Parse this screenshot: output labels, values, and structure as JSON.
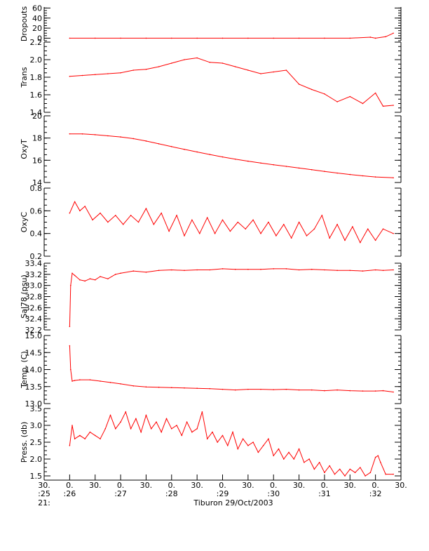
{
  "chart_data": {
    "type": "line",
    "caption": "Tiburon 29/Oct/2003",
    "line_color": "#ff0000",
    "axis_color": "#000000",
    "x_axis": {
      "ticks": [
        {
          "time": 25.5,
          "top": "30.",
          "mid": ":25",
          "bot": "21:"
        },
        {
          "time": 26.0,
          "top": "0.",
          "mid": ":26",
          "bot": ""
        },
        {
          "time": 26.5,
          "top": "30.",
          "mid": "",
          "bot": ""
        },
        {
          "time": 27.0,
          "top": "0.",
          "mid": ":27",
          "bot": ""
        },
        {
          "time": 27.5,
          "top": "30.",
          "mid": "",
          "bot": ""
        },
        {
          "time": 28.0,
          "top": "0.",
          "mid": ":28",
          "bot": ""
        },
        {
          "time": 28.5,
          "top": "30.",
          "mid": "",
          "bot": ""
        },
        {
          "time": 29.0,
          "top": "0.",
          "mid": ":29",
          "bot": ""
        },
        {
          "time": 29.5,
          "top": "30.",
          "mid": "",
          "bot": ""
        },
        {
          "time": 30.0,
          "top": "0.",
          "mid": ":30",
          "bot": ""
        },
        {
          "time": 30.5,
          "top": "30.",
          "mid": "",
          "bot": ""
        },
        {
          "time": 31.0,
          "top": "0.",
          "mid": ":31",
          "bot": ""
        },
        {
          "time": 31.5,
          "top": "30.",
          "mid": "",
          "bot": ""
        },
        {
          "time": 32.0,
          "top": "0.",
          "mid": ":32",
          "bot": ""
        },
        {
          "time": 32.5,
          "top": "30.",
          "mid": "",
          "bot": ""
        }
      ],
      "range": [
        25.5,
        32.5
      ]
    },
    "panels": [
      {
        "name": "Dropouts",
        "ylabel": "Dropouts",
        "ylim": [
          -5,
          62
        ],
        "tick_labels": [
          "60",
          "40",
          "20",
          "0"
        ],
        "tick_values": [
          60,
          40,
          20,
          0
        ],
        "x": [
          26.0,
          26.5,
          27.0,
          27.5,
          28.0,
          28.5,
          29.0,
          29.5,
          30.0,
          30.5,
          31.0,
          31.5,
          31.9,
          32.0,
          32.2,
          32.35
        ],
        "y": [
          0,
          0,
          0,
          0,
          0,
          0,
          0,
          0,
          0,
          0,
          0,
          0,
          2,
          0,
          3,
          10
        ]
      },
      {
        "name": "Trans",
        "ylabel": "Trans",
        "ylim": [
          1.4,
          2.2
        ],
        "tick_labels": [
          "2.2",
          "2.0",
          "1.8",
          "1.6",
          "1.4"
        ],
        "tick_values": [
          2.2,
          2.0,
          1.8,
          1.6,
          1.4
        ],
        "x": [
          26.0,
          26.25,
          26.5,
          26.75,
          27.0,
          27.25,
          27.5,
          27.75,
          28.0,
          28.25,
          28.5,
          28.75,
          29.0,
          29.25,
          29.5,
          29.75,
          30.0,
          30.25,
          30.5,
          30.75,
          31.0,
          31.25,
          31.5,
          31.75,
          32.0,
          32.15,
          32.35
        ],
        "y": [
          1.81,
          1.82,
          1.83,
          1.84,
          1.85,
          1.88,
          1.89,
          1.92,
          1.96,
          2.0,
          2.02,
          1.97,
          1.96,
          1.92,
          1.88,
          1.84,
          1.86,
          1.88,
          1.72,
          1.66,
          1.61,
          1.52,
          1.58,
          1.5,
          1.62,
          1.47,
          1.48
        ]
      },
      {
        "name": "OxyT",
        "ylabel": "OxyT",
        "ylim": [
          14,
          20
        ],
        "tick_labels": [
          "20",
          "18",
          "16",
          "14"
        ],
        "tick_values": [
          20,
          18,
          16,
          14
        ],
        "x": [
          26.0,
          26.25,
          26.5,
          26.75,
          27.0,
          27.25,
          27.5,
          27.75,
          28.0,
          28.25,
          28.5,
          28.75,
          29.0,
          29.25,
          29.5,
          29.75,
          30.0,
          30.25,
          30.5,
          30.75,
          31.0,
          31.25,
          31.5,
          31.75,
          32.0,
          32.35
        ],
        "y": [
          18.38,
          18.37,
          18.3,
          18.2,
          18.1,
          17.95,
          17.73,
          17.48,
          17.23,
          16.98,
          16.75,
          16.52,
          16.3,
          16.1,
          15.92,
          15.75,
          15.6,
          15.45,
          15.3,
          15.15,
          15.0,
          14.85,
          14.72,
          14.6,
          14.5,
          14.42
        ]
      },
      {
        "name": "OxyC",
        "ylabel": "OxyC",
        "ylim": [
          0.2,
          0.8
        ],
        "tick_labels": [
          "0.8",
          "0.6",
          "0.4",
          "0.2"
        ],
        "tick_values": [
          0.8,
          0.6,
          0.4,
          0.2
        ],
        "x": [
          26.0,
          26.1,
          26.2,
          26.3,
          26.45,
          26.6,
          26.75,
          26.9,
          27.05,
          27.2,
          27.35,
          27.5,
          27.65,
          27.8,
          27.95,
          28.1,
          28.25,
          28.4,
          28.55,
          28.7,
          28.85,
          29.0,
          29.15,
          29.3,
          29.45,
          29.6,
          29.75,
          29.9,
          30.05,
          30.2,
          30.35,
          30.5,
          30.65,
          30.8,
          30.95,
          31.1,
          31.25,
          31.4,
          31.55,
          31.7,
          31.85,
          32.0,
          32.15,
          32.35
        ],
        "y": [
          0.58,
          0.68,
          0.6,
          0.64,
          0.52,
          0.58,
          0.5,
          0.56,
          0.48,
          0.56,
          0.5,
          0.62,
          0.48,
          0.58,
          0.42,
          0.56,
          0.38,
          0.52,
          0.4,
          0.54,
          0.4,
          0.52,
          0.42,
          0.5,
          0.44,
          0.52,
          0.4,
          0.5,
          0.38,
          0.48,
          0.36,
          0.5,
          0.38,
          0.44,
          0.56,
          0.36,
          0.48,
          0.34,
          0.46,
          0.32,
          0.44,
          0.34,
          0.44,
          0.4
        ]
      },
      {
        "name": "Sal78",
        "ylabel": "Sal78 (psu)",
        "ylim": [
          32.2,
          33.4
        ],
        "tick_labels": [
          "33.4",
          "33.2",
          "33.0",
          "32.8",
          "32.6",
          "32.4",
          "32.2"
        ],
        "tick_values": [
          33.4,
          33.2,
          33.0,
          32.8,
          32.6,
          32.4,
          32.2
        ],
        "x": [
          26.0,
          26.02,
          26.05,
          26.1,
          26.2,
          26.3,
          26.4,
          26.5,
          26.6,
          26.75,
          26.9,
          27.0,
          27.25,
          27.5,
          27.75,
          28.0,
          28.25,
          28.5,
          28.75,
          29.0,
          29.25,
          29.5,
          29.75,
          30.0,
          30.25,
          30.5,
          30.75,
          31.0,
          31.25,
          31.5,
          31.75,
          32.0,
          32.15,
          32.35
        ],
        "y": [
          32.26,
          33.0,
          33.22,
          33.18,
          33.1,
          33.08,
          33.12,
          33.1,
          33.16,
          33.12,
          33.2,
          33.22,
          33.26,
          33.24,
          33.27,
          33.28,
          33.27,
          33.28,
          33.28,
          33.3,
          33.29,
          33.29,
          33.29,
          33.3,
          33.3,
          33.28,
          33.29,
          33.28,
          33.27,
          33.27,
          33.26,
          33.28,
          33.27,
          33.28
        ]
      },
      {
        "name": "Temp",
        "ylabel": "Temp. (C)",
        "ylim": [
          13.0,
          15.0
        ],
        "tick_labels": [
          "15.0",
          "14.5",
          "14.0",
          "13.5",
          "13.0"
        ],
        "tick_values": [
          15.0,
          14.5,
          14.0,
          13.5,
          13.0
        ],
        "x": [
          26.0,
          26.02,
          26.05,
          26.1,
          26.2,
          26.4,
          26.6,
          26.8,
          27.0,
          27.25,
          27.5,
          27.75,
          28.0,
          28.25,
          28.5,
          28.75,
          29.0,
          29.25,
          29.5,
          29.75,
          30.0,
          30.25,
          30.5,
          30.75,
          31.0,
          31.25,
          31.5,
          31.75,
          32.0,
          32.15,
          32.35
        ],
        "y": [
          14.7,
          14.0,
          13.66,
          13.68,
          13.7,
          13.7,
          13.66,
          13.62,
          13.58,
          13.52,
          13.49,
          13.48,
          13.47,
          13.46,
          13.45,
          13.44,
          13.42,
          13.4,
          13.42,
          13.42,
          13.41,
          13.42,
          13.4,
          13.4,
          13.38,
          13.4,
          13.38,
          13.37,
          13.37,
          13.38,
          13.34
        ]
      },
      {
        "name": "Press",
        "ylabel": "Press. (db)",
        "ylim": [
          1.5,
          3.5
        ],
        "tick_labels": [
          "3.5",
          "3.0",
          "2.5",
          "2.0",
          "1.5"
        ],
        "tick_values": [
          3.5,
          3.0,
          2.5,
          2.0,
          1.5
        ],
        "x": [
          26.0,
          26.05,
          26.1,
          26.2,
          26.3,
          26.4,
          26.5,
          26.6,
          26.7,
          26.8,
          26.9,
          27.0,
          27.1,
          27.2,
          27.3,
          27.4,
          27.5,
          27.6,
          27.7,
          27.8,
          27.9,
          28.0,
          28.1,
          28.2,
          28.3,
          28.4,
          28.5,
          28.6,
          28.7,
          28.8,
          28.9,
          29.0,
          29.1,
          29.2,
          29.3,
          29.4,
          29.5,
          29.6,
          29.7,
          29.8,
          29.9,
          30.0,
          30.1,
          30.2,
          30.3,
          30.4,
          30.5,
          30.6,
          30.7,
          30.8,
          30.9,
          31.0,
          31.1,
          31.2,
          31.3,
          31.4,
          31.5,
          31.6,
          31.7,
          31.8,
          31.9,
          32.0,
          32.05,
          32.1,
          32.2,
          32.35
        ],
        "y": [
          2.4,
          3.0,
          2.6,
          2.7,
          2.6,
          2.8,
          2.7,
          2.6,
          2.9,
          3.3,
          2.9,
          3.1,
          3.4,
          2.9,
          3.2,
          2.8,
          3.3,
          2.9,
          3.1,
          2.8,
          3.2,
          2.9,
          3.0,
          2.7,
          3.1,
          2.8,
          2.9,
          3.4,
          2.6,
          2.8,
          2.5,
          2.7,
          2.4,
          2.8,
          2.3,
          2.6,
          2.4,
          2.5,
          2.2,
          2.4,
          2.6,
          2.1,
          2.3,
          2.0,
          2.2,
          2.0,
          2.3,
          1.9,
          2.0,
          1.7,
          1.9,
          1.6,
          1.8,
          1.55,
          1.7,
          1.5,
          1.7,
          1.6,
          1.75,
          1.5,
          1.6,
          2.05,
          2.1,
          1.9,
          1.55,
          1.55
        ]
      }
    ]
  }
}
